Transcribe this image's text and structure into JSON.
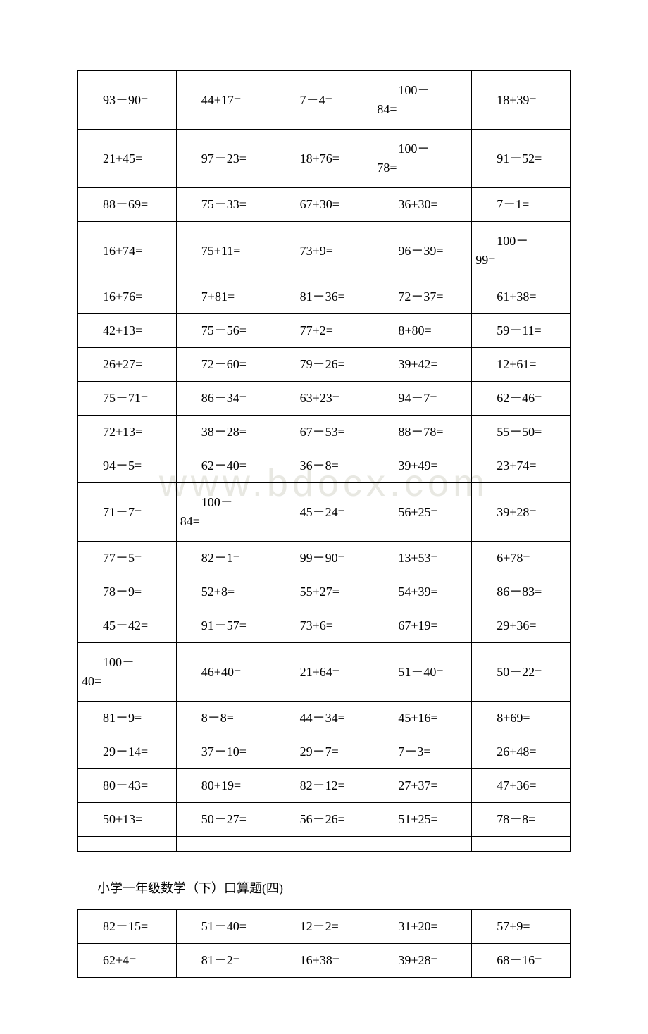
{
  "watermark_text": "www.bdocx.com",
  "section_title": "小学一年级数学（下）口算题(四)",
  "table1": {
    "columns": 5,
    "column_width_pct": 20,
    "border_color": "#000000",
    "font_size": 18,
    "text_color": "#000000",
    "rows": [
      [
        "93－90=",
        "44+17=",
        "7－4=",
        "100－84=",
        "18+39="
      ],
      [
        "21+45=",
        "97－23=",
        "18+76=",
        "100－78=",
        "91－52="
      ],
      [
        "88－69=",
        "75－33=",
        "67+30=",
        "36+30=",
        "7－1="
      ],
      [
        "16+74=",
        "75+11=",
        "73+9=",
        "96－39=",
        "100－99="
      ],
      [
        "16+76=",
        "7+81=",
        "81－36=",
        "72－37=",
        "61+38="
      ],
      [
        "42+13=",
        "75－56=",
        "77+2=",
        "8+80=",
        "59－11="
      ],
      [
        "26+27=",
        "72－60=",
        "79－26=",
        "39+42=",
        "12+61="
      ],
      [
        "75－71=",
        "86－34=",
        "63+23=",
        "94－7=",
        "62－46="
      ],
      [
        "72+13=",
        "38－28=",
        "67－53=",
        "88－78=",
        "55－50="
      ],
      [
        "94－5=",
        "62－40=",
        "36－8=",
        "39+49=",
        "23+74="
      ],
      [
        "71－7=",
        "100－84=",
        "45－24=",
        "56+25=",
        "39+28="
      ],
      [
        "77－5=",
        "82－1=",
        "99－90=",
        "13+53=",
        "6+78="
      ],
      [
        "78－9=",
        "52+8=",
        "55+27=",
        "54+39=",
        "86－83="
      ],
      [
        "45－42=",
        "91－57=",
        "73+6=",
        "67+19=",
        "29+36="
      ],
      [
        "100－40=",
        "46+40=",
        "21+64=",
        "51－40=",
        "50－22="
      ],
      [
        "81－9=",
        "8－8=",
        "44－34=",
        "45+16=",
        "8+69="
      ],
      [
        "29－14=",
        "37－10=",
        "29－7=",
        "7－3=",
        "26+48="
      ],
      [
        "80－43=",
        "80+19=",
        "82－12=",
        "27+37=",
        "47+36="
      ],
      [
        "50+13=",
        "50－27=",
        "56－26=",
        "51+25=",
        "78－8="
      ],
      [
        "",
        "",
        "",
        "",
        ""
      ]
    ],
    "wrapped_cells": [
      {
        "row": 0,
        "col": 3,
        "first": "100－",
        "cont": "84="
      },
      {
        "row": 1,
        "col": 3,
        "first": "100－",
        "cont": "78="
      },
      {
        "row": 3,
        "col": 4,
        "first": "100－",
        "cont": "99="
      },
      {
        "row": 10,
        "col": 1,
        "first": "100－",
        "cont": "84="
      },
      {
        "row": 14,
        "col": 0,
        "first": "100－",
        "cont": "40="
      }
    ],
    "tall_rows": [
      0,
      1,
      3,
      10,
      14
    ]
  },
  "table2": {
    "columns": 5,
    "column_width_pct": 20,
    "border_color": "#000000",
    "font_size": 18,
    "text_color": "#000000",
    "rows": [
      [
        "82－15=",
        "51－40=",
        "12－2=",
        "31+20=",
        "57+9="
      ],
      [
        "62+4=",
        "81－2=",
        "16+38=",
        "39+28=",
        "68－16="
      ]
    ]
  }
}
